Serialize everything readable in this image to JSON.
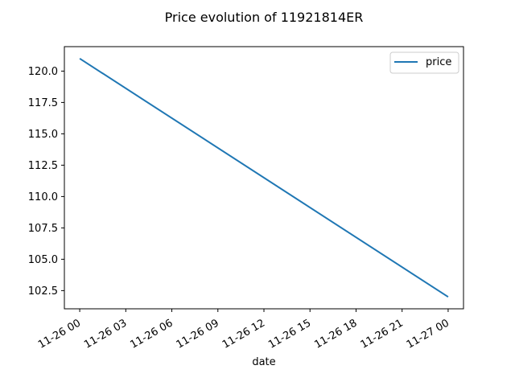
{
  "chart_data": {
    "type": "line",
    "title": "Price evolution of 11921814ER",
    "xlabel": "date",
    "ylabel": "",
    "x": [
      "11-26 00",
      "11-27 00"
    ],
    "x_hours": [
      0,
      24
    ],
    "series": [
      {
        "name": "price",
        "values": [
          121.0,
          102.0
        ],
        "color": "#1f77b4"
      }
    ],
    "xlim_hours": [
      -1.0,
      25.0
    ],
    "ylim": [
      101.05,
      121.95
    ],
    "x_ticks": [
      {
        "label": "11-26 00",
        "hour": 0
      },
      {
        "label": "11-26 03",
        "hour": 3
      },
      {
        "label": "11-26 06",
        "hour": 6
      },
      {
        "label": "11-26 09",
        "hour": 9
      },
      {
        "label": "11-26 12",
        "hour": 12
      },
      {
        "label": "11-26 15",
        "hour": 15
      },
      {
        "label": "11-26 18",
        "hour": 18
      },
      {
        "label": "11-26 21",
        "hour": 21
      },
      {
        "label": "11-27 00",
        "hour": 24
      }
    ],
    "y_ticks": [
      {
        "label": "102.5",
        "value": 102.5
      },
      {
        "label": "105.0",
        "value": 105.0
      },
      {
        "label": "107.5",
        "value": 107.5
      },
      {
        "label": "110.0",
        "value": 110.0
      },
      {
        "label": "112.5",
        "value": 112.5
      },
      {
        "label": "115.0",
        "value": 115.0
      },
      {
        "label": "117.5",
        "value": 117.5
      },
      {
        "label": "120.0",
        "value": 120.0
      }
    ],
    "grid": false,
    "legend_position": "top-right"
  }
}
